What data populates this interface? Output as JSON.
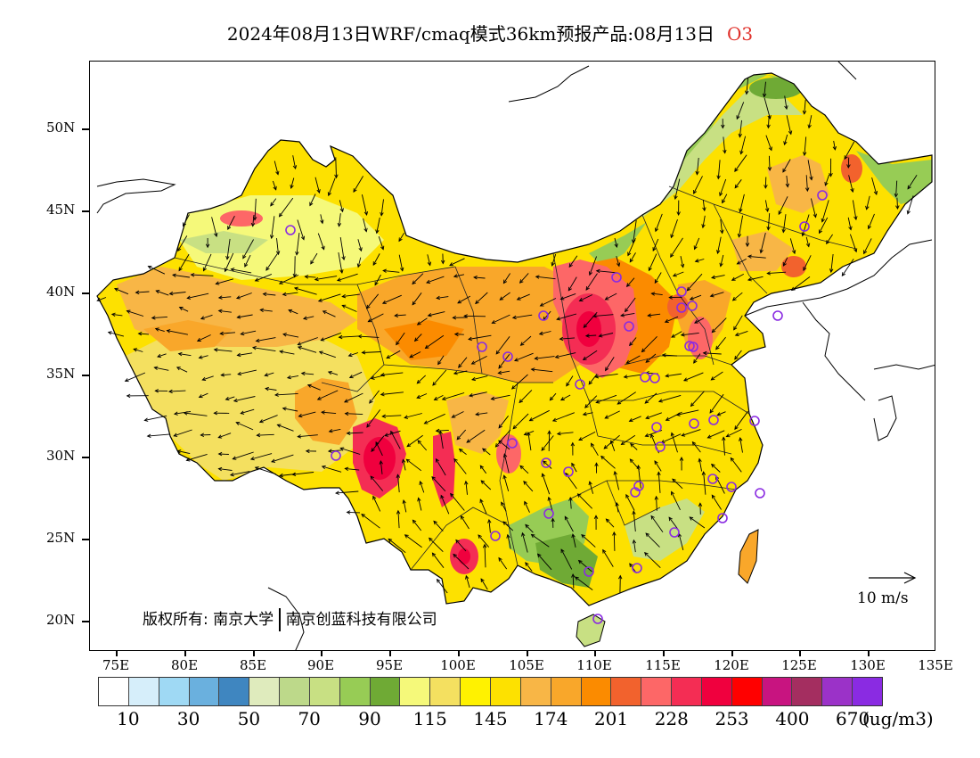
{
  "header": {
    "title": "2024年08月13日WRF/cmaq模式36km预报产品:08月13日",
    "pollutant": "O3"
  },
  "map": {
    "lat_labels": [
      "50N",
      "45N",
      "40N",
      "35N",
      "30N",
      "25N",
      "20N"
    ],
    "lon_labels": [
      "75E",
      "80E",
      "85E",
      "90E",
      "95E",
      "100E",
      "105E",
      "110E",
      "115E",
      "120E",
      "125E",
      "130E",
      "135E"
    ]
  },
  "copyright": {
    "prefix": "版权所有:",
    "org1": "南京大学",
    "org2": "南京创蓝科技有限公司"
  },
  "reference_vector": {
    "label": "10 m/s"
  },
  "legend": {
    "colors": [
      "#ffffff",
      "#d6eefa",
      "#9fd9f4",
      "#6ab0de",
      "#3f86c0",
      "#dfebbd",
      "#bdd98a",
      "#c8e083",
      "#97cc55",
      "#6faa35",
      "#f5f97a",
      "#f4e060",
      "#fff200",
      "#fde100",
      "#f8b646",
      "#f9a72a",
      "#fb8b00",
      "#f2622d",
      "#fd6767",
      "#f42d54",
      "#f0003e",
      "#ff0000",
      "#c81480",
      "#a42e60",
      "#9b32c8",
      "#8a2be2"
    ],
    "labels": [
      "10",
      "30",
      "50",
      "70",
      "90",
      "115",
      "145",
      "174",
      "201",
      "228",
      "253",
      "400",
      "670"
    ],
    "unit": "(ug/m3)"
  },
  "stations": {
    "color": "#8a2be2",
    "count": 38
  }
}
